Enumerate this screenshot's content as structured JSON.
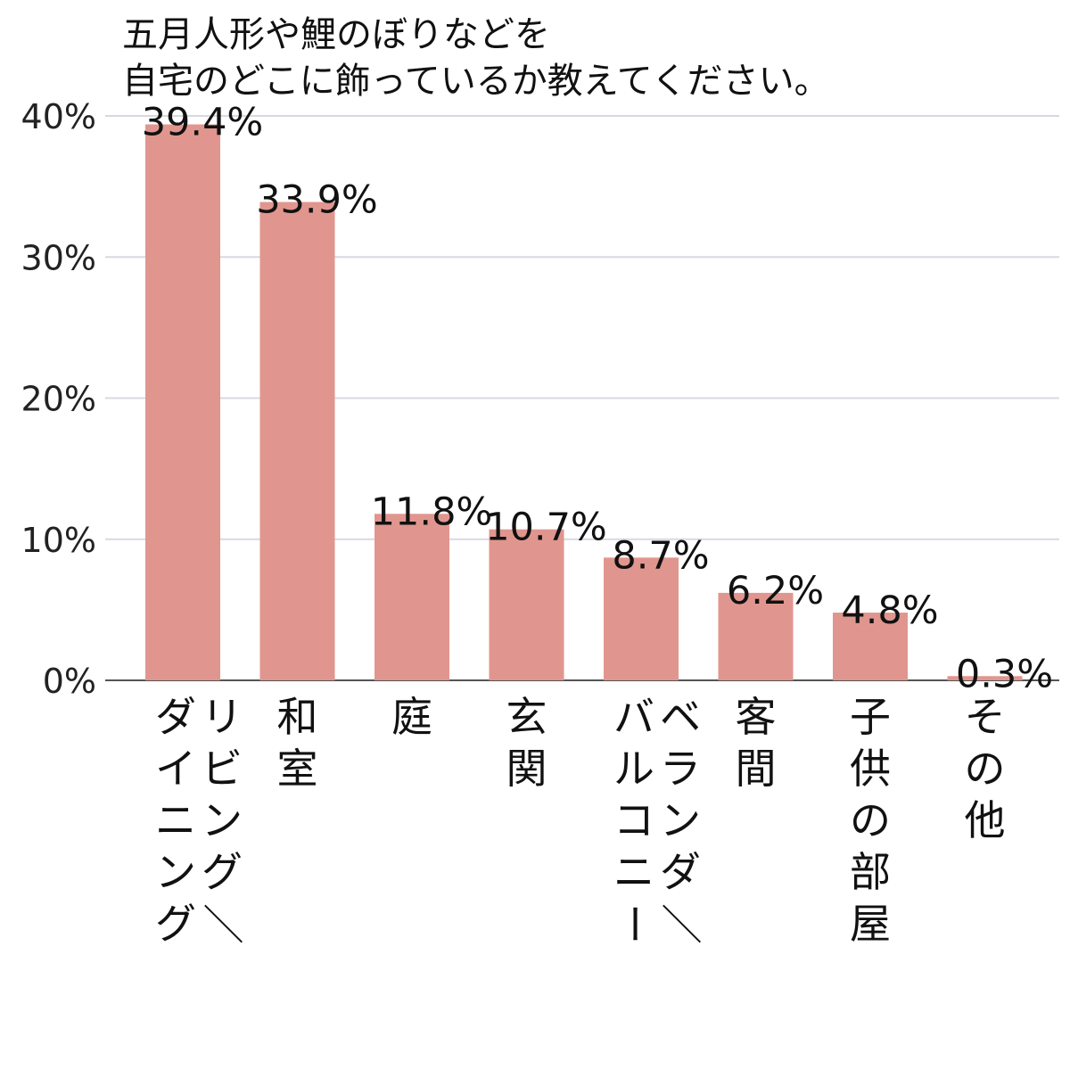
{
  "title_lines": [
    "五月人形や鯉のぼりなどを",
    "自宅のどこに飾っているか教えてください。"
  ],
  "chart_data": {
    "type": "bar",
    "title": "五月人形や鯉のぼりなどを自宅のどこに飾っているか教えてください。",
    "categories": [
      "リビング／ダイニング",
      "和室",
      "庭",
      "玄関",
      "ベランダ／バルコニー",
      "客間",
      "子供の部屋",
      "その他"
    ],
    "category_label_columns": [
      [
        "リビング／",
        "ダイニング"
      ],
      [
        "和室"
      ],
      [
        "庭"
      ],
      [
        "玄関"
      ],
      [
        "ベランダ／",
        "バルコニー"
      ],
      [
        "客間"
      ],
      [
        "子供の部屋"
      ],
      [
        "その他"
      ]
    ],
    "values": [
      39.4,
      33.9,
      11.8,
      10.7,
      8.7,
      6.2,
      4.8,
      0.3
    ],
    "value_labels": [
      "39.4%",
      "33.9%",
      "11.8%",
      "10.7%",
      "8.7%",
      "6.2%",
      "4.8%",
      "0.3%"
    ],
    "yticks": [
      0,
      10,
      20,
      30,
      40
    ],
    "ytick_labels": [
      "0%",
      "10%",
      "20%",
      "30%",
      "40%"
    ],
    "ylim": [
      0,
      40
    ],
    "grid": true,
    "legend": "none",
    "colors": {
      "bar": "#e0968e",
      "grid": "#d8d8e2",
      "baseline": "#555555",
      "text": "#111111"
    }
  }
}
